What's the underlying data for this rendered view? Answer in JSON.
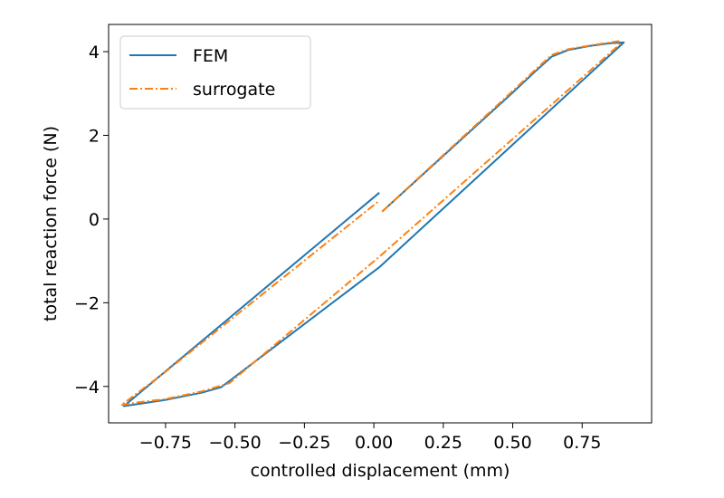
{
  "chart_data": {
    "type": "line",
    "title": "",
    "xlabel": "controlled displacement (mm)",
    "ylabel": "total reaction force (N)",
    "xlim": [
      -0.955,
      1.0
    ],
    "ylim": [
      -4.87,
      4.65
    ],
    "xticks": [
      -0.75,
      -0.5,
      -0.25,
      0.0,
      0.25,
      0.5,
      0.75
    ],
    "xtick_labels": [
      "−0.75",
      "−0.50",
      "−0.25",
      "0.00",
      "0.25",
      "0.50",
      "0.75"
    ],
    "yticks": [
      -4,
      -2,
      0,
      2,
      4
    ],
    "ytick_labels": [
      "−4",
      "−2",
      "0",
      "2",
      "4"
    ],
    "grid": false,
    "legend_position": "top-left",
    "series": [
      {
        "name": "FEM",
        "color": "#1f77b4",
        "style": "solid",
        "segments": [
          [
            [
              0.03,
              0.18
            ],
            [
              0.5,
              3.02
            ],
            [
              0.58,
              3.52
            ],
            [
              0.64,
              3.88
            ],
            [
              0.7,
              4.04
            ],
            [
              0.78,
              4.14
            ],
            [
              0.85,
              4.2
            ],
            [
              0.9,
              4.22
            ],
            [
              0.02,
              -1.15
            ],
            [
              -0.55,
              -4.02
            ],
            [
              -0.62,
              -4.15
            ],
            [
              -0.75,
              -4.32
            ],
            [
              -0.85,
              -4.42
            ],
            [
              -0.9,
              -4.47
            ],
            [
              0.02,
              0.63
            ]
          ]
        ]
      },
      {
        "name": "surrogate",
        "color": "#ff7f0e",
        "style": "dashdot",
        "segments": [
          [
            [
              0.03,
              0.18
            ],
            [
              0.5,
              3.06
            ],
            [
              0.58,
              3.56
            ],
            [
              0.64,
              3.92
            ],
            [
              0.7,
              4.06
            ],
            [
              0.78,
              4.15
            ],
            [
              0.85,
              4.22
            ],
            [
              0.88,
              4.25
            ],
            [
              0.89,
              4.2
            ],
            [
              0.02,
              -0.9
            ],
            [
              -0.52,
              -3.92
            ],
            [
              -0.62,
              -4.12
            ],
            [
              -0.75,
              -4.3
            ],
            [
              -0.85,
              -4.38
            ],
            [
              -0.91,
              -4.45
            ],
            [
              -0.88,
              -4.3
            ],
            [
              -0.75,
              -3.65
            ],
            [
              0.02,
              0.44
            ]
          ]
        ]
      }
    ]
  }
}
